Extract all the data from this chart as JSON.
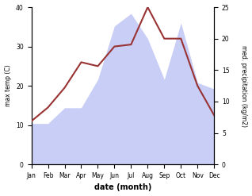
{
  "months": [
    "Jan",
    "Feb",
    "Mar",
    "Apr",
    "May",
    "Jun",
    "Jul",
    "Aug",
    "Sep",
    "Oct",
    "Nov",
    "Dec"
  ],
  "month_indices": [
    0,
    1,
    2,
    3,
    4,
    5,
    6,
    7,
    8,
    9,
    10,
    11
  ],
  "temp_max": [
    11,
    14.5,
    19.5,
    26,
    25,
    30,
    30.5,
    40,
    32,
    32,
    20,
    12.5
  ],
  "precipitation": [
    6.5,
    6.5,
    9,
    9,
    13.5,
    22,
    24,
    20,
    13.5,
    22.5,
    13,
    12
  ],
  "temp_color": "#993333",
  "precip_fill_color": "#c8cef5",
  "left_ylabel": "max temp (C)",
  "right_ylabel": "med. precipitation (kg/m2)",
  "xlabel": "date (month)",
  "left_ylim": [
    0,
    40
  ],
  "right_ylim": [
    0,
    25
  ],
  "left_yticks": [
    0,
    10,
    20,
    30,
    40
  ],
  "right_yticks": [
    0,
    5,
    10,
    15,
    20,
    25
  ],
  "bg_color": "#ffffff"
}
